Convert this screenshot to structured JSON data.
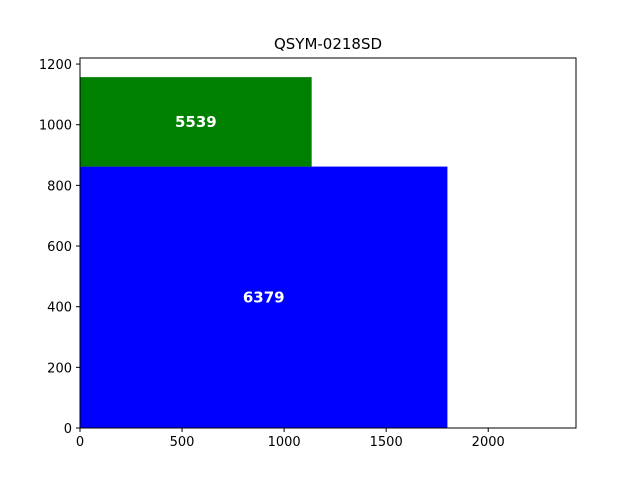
{
  "chart_data": {
    "type": "bar",
    "title": "QSYM-0218SD",
    "xlabel": "",
    "ylabel": "",
    "xlim": [
      0,
      2430
    ],
    "ylim": [
      0,
      1220
    ],
    "x_ticks": [
      0,
      500,
      1000,
      1500,
      2000
    ],
    "y_ticks": [
      0,
      200,
      400,
      600,
      800,
      1000,
      1200
    ],
    "grid": false,
    "rects": [
      {
        "x0": 0,
        "x1": 1800,
        "y0": 0,
        "y1": 862,
        "label": "6379",
        "color": "#0000ff"
      },
      {
        "x0": 0,
        "x1": 1135,
        "y0": 862,
        "y1": 1157,
        "label": "5539",
        "color": "#008000"
      }
    ]
  }
}
